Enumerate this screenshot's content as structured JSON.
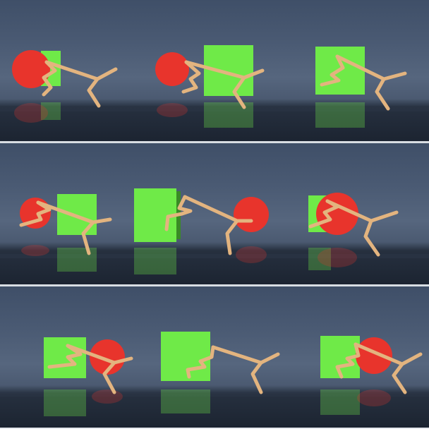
{
  "grid": {
    "rows": 3,
    "columns": 3,
    "panels": [
      {
        "row": 1,
        "frames": [
          {
            "objects": [
              "red-ball",
              "green-cube"
            ],
            "agent": "tan-stick-robot"
          },
          {
            "objects": [
              "red-ball",
              "green-cube"
            ],
            "agent": "tan-stick-robot"
          },
          {
            "objects": [
              "green-cube"
            ],
            "agent": "tan-stick-robot"
          }
        ]
      },
      {
        "row": 2,
        "frames": [
          {
            "objects": [
              "red-ball",
              "green-cube"
            ],
            "agent": "tan-stick-robot"
          },
          {
            "objects": [
              "green-cube",
              "red-ball"
            ],
            "agent": "tan-stick-robot"
          },
          {
            "objects": [
              "green-cube",
              "red-ball"
            ],
            "agent": "tan-stick-robot"
          }
        ]
      },
      {
        "row": 3,
        "frames": [
          {
            "objects": [
              "green-cube",
              "red-ball"
            ],
            "agent": "tan-stick-robot"
          },
          {
            "objects": [
              "green-cube"
            ],
            "agent": "tan-stick-robot"
          },
          {
            "objects": [
              "green-cube",
              "red-ball"
            ],
            "agent": "tan-stick-robot"
          }
        ]
      }
    ]
  },
  "colors": {
    "ball": "#e8342c",
    "cube": "#6fea48",
    "robot": "#e3b47f",
    "floor": "#1f2836",
    "sky": "#4a5a73"
  }
}
